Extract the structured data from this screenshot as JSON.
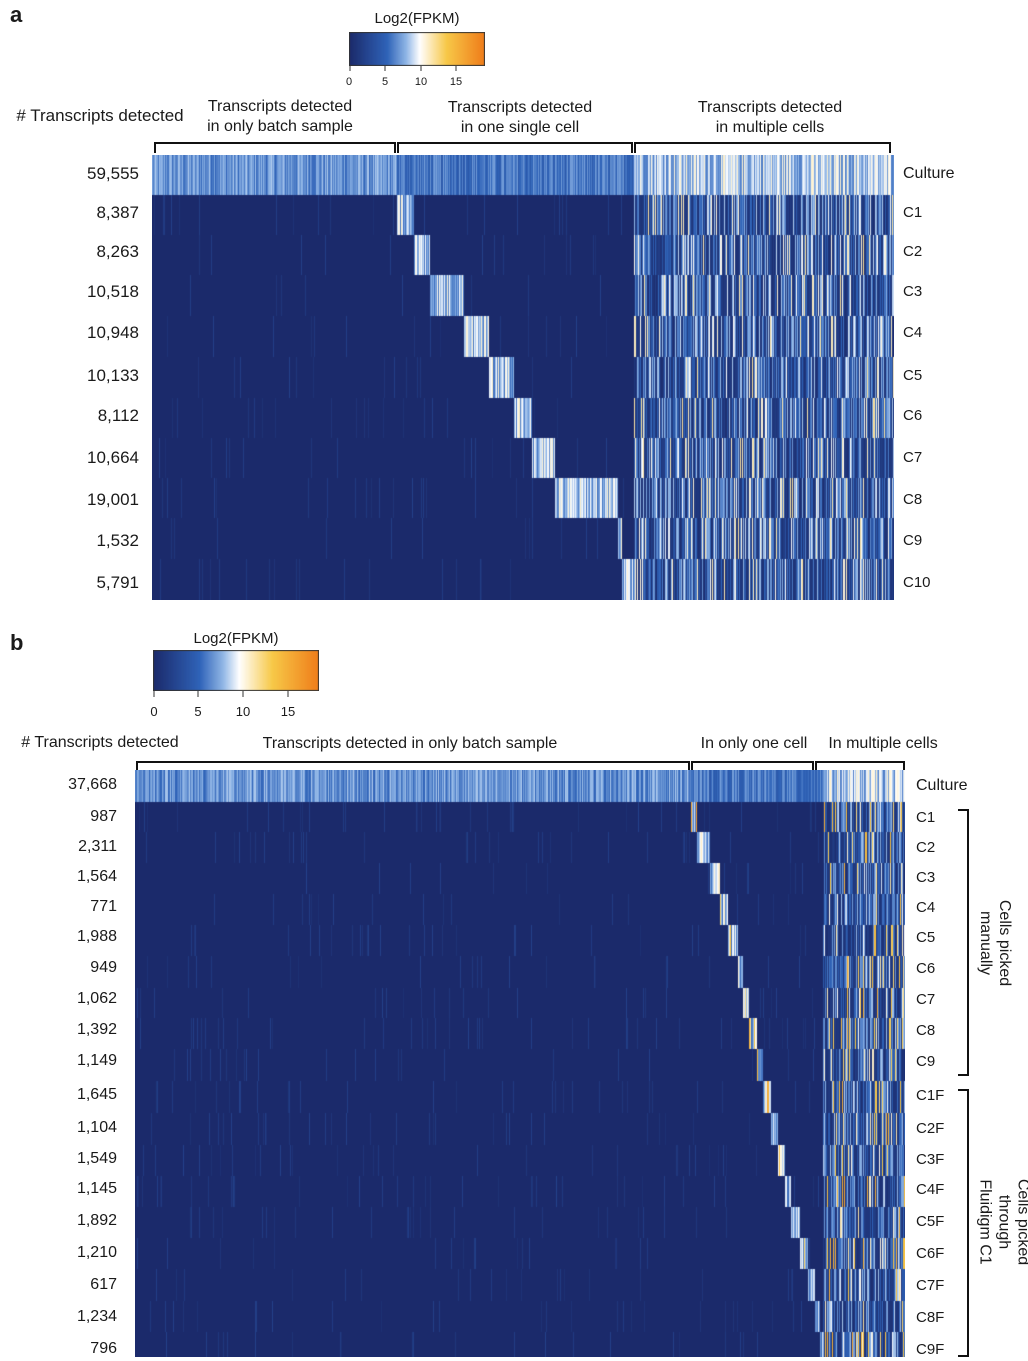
{
  "colors": {
    "navy": "#1b2a6b",
    "mid_blue": "#2f63b8",
    "light_blue": "#8fb5e6",
    "white": "#ffffff",
    "yellow": "#f7c948",
    "orange": "#ef7d1a"
  },
  "chart_data": [
    {
      "type": "heatmap",
      "panel_label": "a",
      "colorbar": {
        "title": "Log2(FPKM)",
        "ticks": [
          "0",
          "5",
          "10",
          "15"
        ],
        "range": [
          0,
          19
        ]
      },
      "row_header": "# Transcripts detected",
      "column_groups": [
        {
          "label": [
            "Transcripts detected",
            "in only batch sample"
          ]
        },
        {
          "label": [
            "Transcripts detected",
            "in one single cell"
          ]
        },
        {
          "label": [
            "Transcripts detected",
            "in multiple cells"
          ]
        }
      ],
      "rows": [
        {
          "name": "Culture",
          "count": "59,555"
        },
        {
          "name": "C1",
          "count": "8,387"
        },
        {
          "name": "C2",
          "count": "8,263"
        },
        {
          "name": "C3",
          "count": "10,518"
        },
        {
          "name": "C4",
          "count": "10,948"
        },
        {
          "name": "C5",
          "count": "10,133"
        },
        {
          "name": "C6",
          "count": "8,112"
        },
        {
          "name": "C7",
          "count": "10,664"
        },
        {
          "name": "C8",
          "count": "19,001"
        },
        {
          "name": "C9",
          "count": "1,532"
        },
        {
          "name": "C10",
          "count": "5,791"
        }
      ]
    },
    {
      "type": "heatmap",
      "panel_label": "b",
      "colorbar": {
        "title": "Log2(FPKM)",
        "ticks": [
          "0",
          "5",
          "10",
          "15"
        ],
        "range": [
          0,
          19
        ]
      },
      "row_header": "# Transcripts detected",
      "column_groups": [
        {
          "label": [
            "Transcripts detected in only batch sample"
          ]
        },
        {
          "label": [
            "In only one cell"
          ]
        },
        {
          "label": [
            "In multiple cells"
          ]
        }
      ],
      "row_groups": [
        {
          "label": [
            "Cells picked",
            "manually"
          ]
        },
        {
          "label": [
            "Cells picked",
            "through",
            "Fluidigm C1"
          ]
        }
      ],
      "rows": [
        {
          "name": "Culture",
          "count": "37,668"
        },
        {
          "name": "C1",
          "count": "987"
        },
        {
          "name": "C2",
          "count": "2,311"
        },
        {
          "name": "C3",
          "count": "1,564"
        },
        {
          "name": "C4",
          "count": "771"
        },
        {
          "name": "C5",
          "count": "1,988"
        },
        {
          "name": "C6",
          "count": "949"
        },
        {
          "name": "C7",
          "count": "1,062"
        },
        {
          "name": "C8",
          "count": "1,392"
        },
        {
          "name": "C9",
          "count": "1,149"
        },
        {
          "name": "C1F",
          "count": "1,645"
        },
        {
          "name": "C2F",
          "count": "1,104"
        },
        {
          "name": "C3F",
          "count": "1,549"
        },
        {
          "name": "C4F",
          "count": "1,145"
        },
        {
          "name": "C5F",
          "count": "1,892"
        },
        {
          "name": "C6F",
          "count": "1,210"
        },
        {
          "name": "C7F",
          "count": "617"
        },
        {
          "name": "C8F",
          "count": "1,234"
        },
        {
          "name": "C9F",
          "count": "796"
        }
      ]
    }
  ]
}
